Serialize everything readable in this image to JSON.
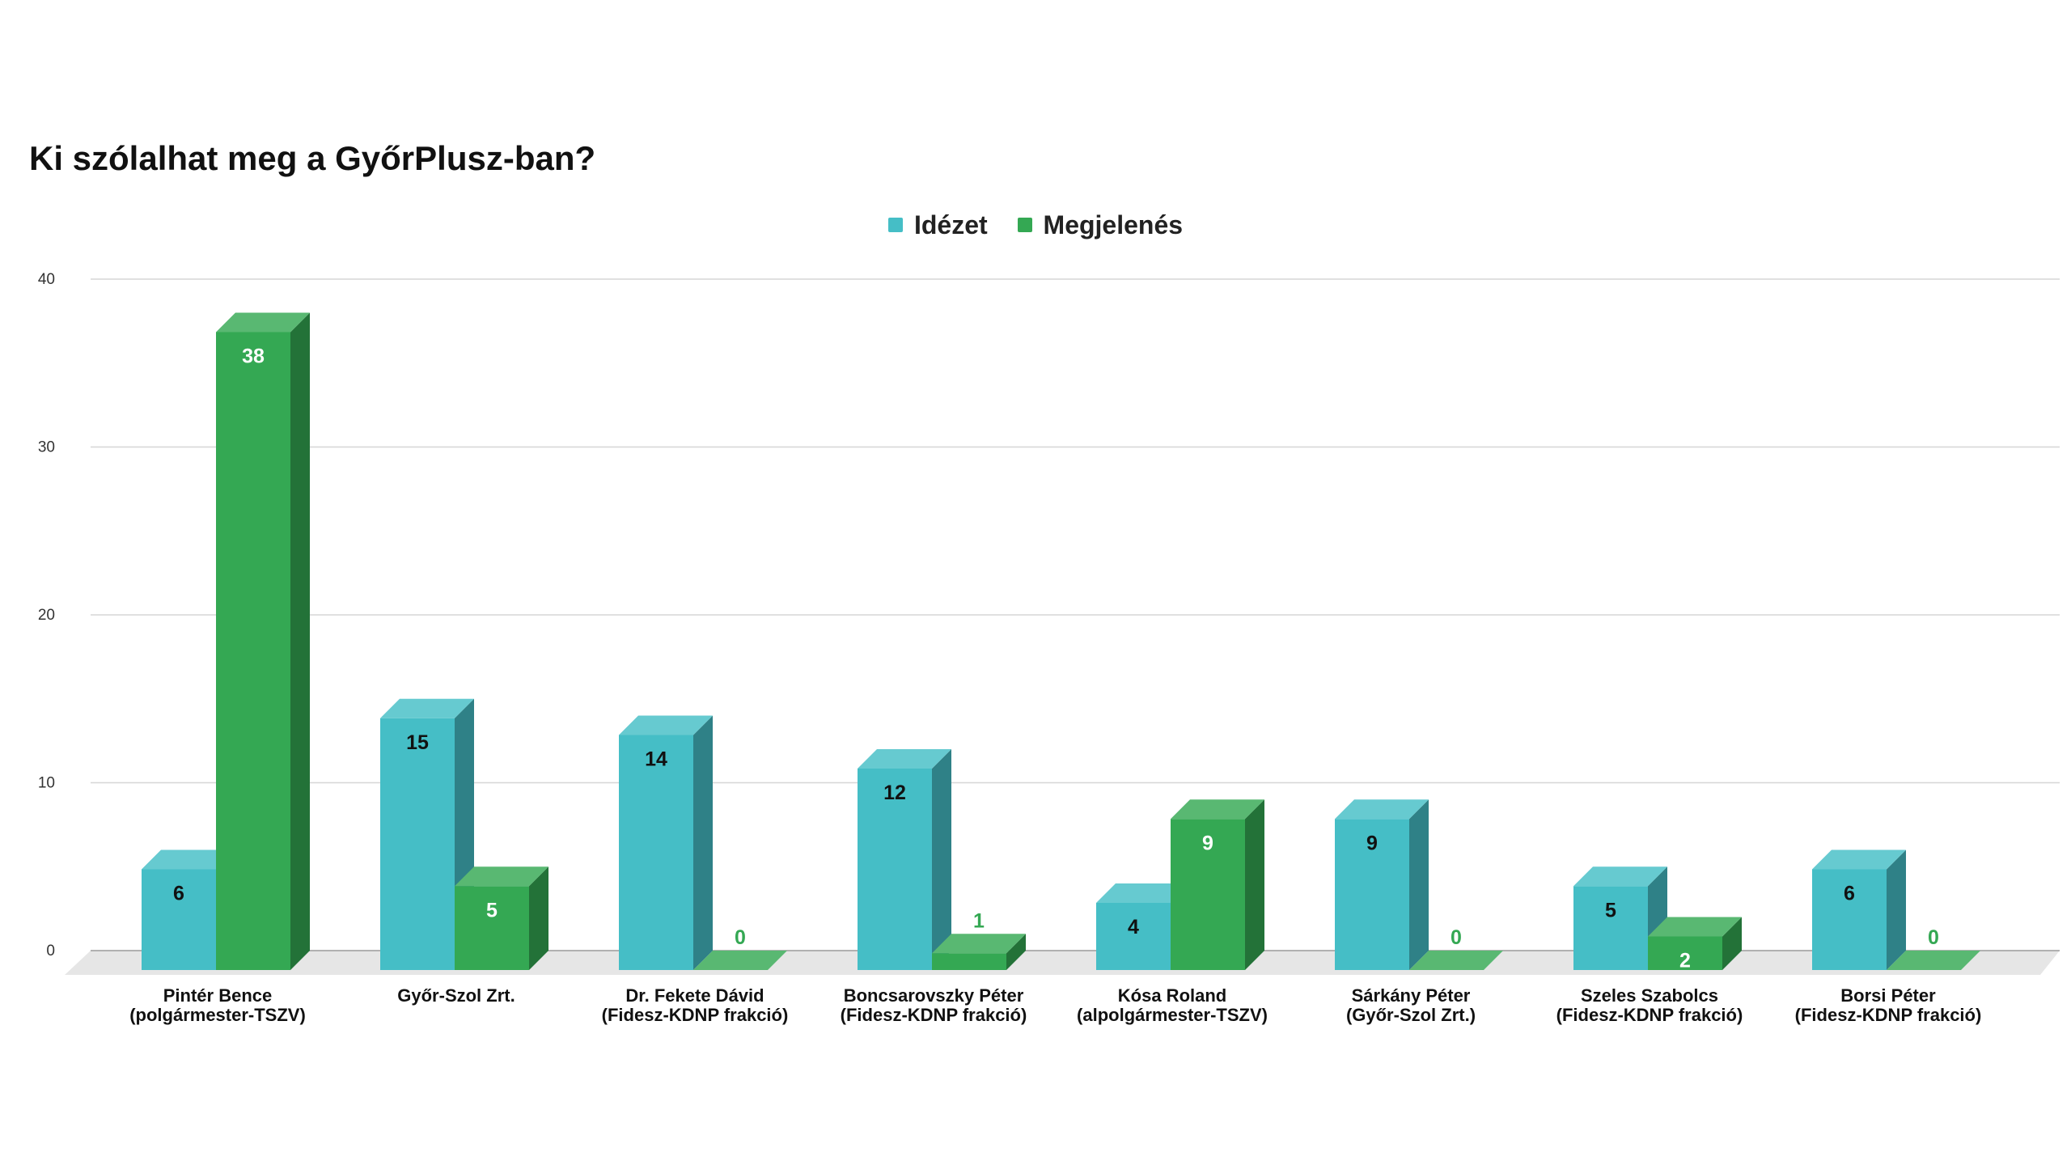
{
  "chart_data": {
    "type": "bar",
    "title": "Ki szólalhat meg a GyőrPlusz-ban?",
    "xlabel": "",
    "ylabel": "",
    "ylim": [
      0,
      40
    ],
    "yticks": [
      0,
      10,
      20,
      30,
      40
    ],
    "grid": true,
    "legend_position": "top",
    "categories": [
      [
        "Pintér Bence",
        "(polgármester-TSZV)"
      ],
      [
        "Győr-Szol Zrt.",
        ""
      ],
      [
        "Dr. Fekete Dávid",
        "(Fidesz-KDNP frakció)"
      ],
      [
        "Boncsarovszky Péter",
        "(Fidesz-KDNP frakció)"
      ],
      [
        "Kósa Roland",
        "(alpolgármester-TSZV)"
      ],
      [
        "Sárkány Péter",
        "(Győr-Szol Zrt.)"
      ],
      [
        "Szeles Szabolcs",
        "(Fidesz-KDNP frakció)"
      ],
      [
        "Borsi Péter",
        "(Fidesz-KDNP frakció)"
      ]
    ],
    "series": [
      {
        "name": "Idézet",
        "color": "#45BEC6",
        "values": [
          6,
          15,
          14,
          12,
          4,
          9,
          5,
          6
        ]
      },
      {
        "name": "Megjelenés",
        "color": "#34A853",
        "values": [
          38,
          5,
          0,
          1,
          9,
          0,
          2,
          0
        ]
      }
    ]
  }
}
